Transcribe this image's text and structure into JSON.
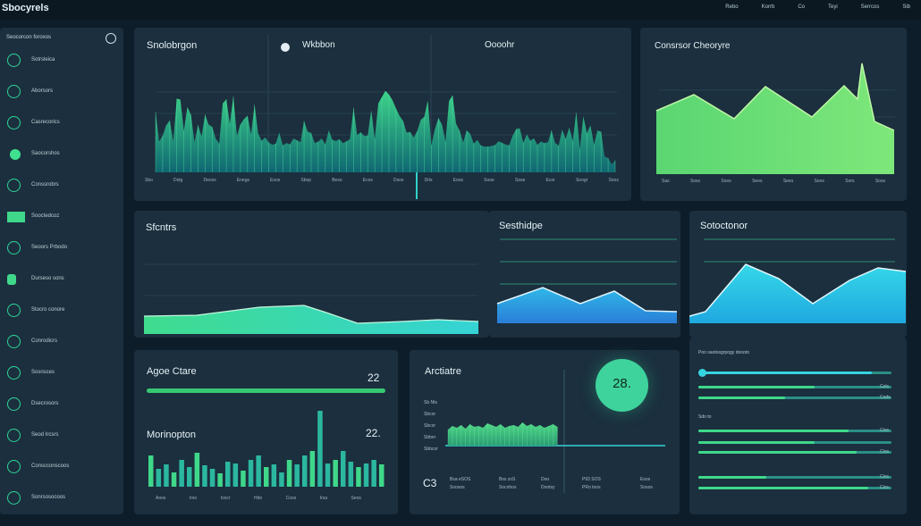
{
  "app": {
    "title": "Sbocyrels"
  },
  "topnav": [
    "Rebo",
    "Korrb",
    "Co",
    "Teyi",
    "Serrcos",
    "Sib"
  ],
  "sidebar": {
    "title": "Seocorcon foroxos",
    "items": [
      {
        "label": "Sotrsleica",
        "icon": "pulse-icon"
      },
      {
        "label": "Aborsors",
        "icon": "circle-icon"
      },
      {
        "label": "Casrecorics",
        "icon": "check-icon"
      },
      {
        "label": "Saocorshos",
        "icon": "dot-icon"
      },
      {
        "label": "Conssrobrs",
        "icon": "spiral-icon"
      },
      {
        "label": "Sooctedcoz",
        "icon": "square-icon"
      },
      {
        "label": "Seoors Prbodo",
        "icon": "chart-icon"
      },
      {
        "label": "Durseso sons",
        "icon": "toggle-icon"
      },
      {
        "label": "Stocro conore",
        "icon": "shield-icon"
      },
      {
        "label": "Conrodicrs",
        "icon": "ring-icon"
      },
      {
        "label": "Sosnsces",
        "icon": "target-icon"
      },
      {
        "label": "Dsecrosors",
        "icon": "heart-icon"
      },
      {
        "label": "Seod Ircsrs",
        "icon": "box-icon"
      },
      {
        "label": "Conscconscoos",
        "icon": "link-icon"
      },
      {
        "label": "Sonrsosocoos",
        "icon": "wave-icon"
      }
    ]
  },
  "panel_main": {
    "title": "Snolobrgon",
    "sub1": "Wkbbon",
    "sub2": "Oooohr",
    "ticks": [
      "Sbo",
      "Dstg",
      "Deces",
      "Enegs",
      "Esos",
      "Sbop",
      "Beso",
      "Ecos",
      "Dsos",
      "Drls",
      "Eoos",
      "Sooe",
      "Sose",
      "Ecor",
      "Soogr",
      "Soos"
    ]
  },
  "panel_right_top": {
    "title": "Consrsor Cheoryre",
    "ticks": [
      "Sas",
      "Soss",
      "Soos",
      "Sees",
      "Sees",
      "Seos",
      "Sors",
      "Soss"
    ]
  },
  "panel_mid": {
    "title": "Sfcntrs"
  },
  "panel_mid2": {
    "title": "Sesthidpe"
  },
  "panel_right_mid": {
    "title": "Sotoctonor"
  },
  "panel_stats": {
    "label1": "Agoe Ctare",
    "value1": "22",
    "label2": "Morinopton",
    "value2": "22.",
    "ticks": [
      "Aoos",
      "Irso",
      "Ioscr",
      "Hdo",
      "Coos",
      "Irsa",
      "Seos"
    ]
  },
  "panel_activity": {
    "title": "Arctiatre",
    "gauge_value": "28.",
    "left_labels": [
      "Sb Nts",
      "Sbcor",
      "Sbcor",
      "Sbber",
      "Sbbcor"
    ],
    "bottom_prefix": "C3",
    "bottom": [
      {
        "top": "Bsa eSOS",
        "bot": "Soosos"
      },
      {
        "top": "Bss zoS",
        "bot": "Socohos"
      },
      {
        "top": "Doo",
        "bot": "Dootsy"
      },
      {
        "top": "P93 SOS",
        "bot": "PRo toos"
      },
      {
        "top": "Esos",
        "bot": "Sosos"
      }
    ]
  },
  "panel_settings": {
    "header": "Poo saotosgrpogy doooto",
    "sub": "Sdo to",
    "sliders": [
      {
        "level": 0.9,
        "tail": ""
      },
      {
        "level": 0.6,
        "tail": "Cols"
      },
      {
        "level": 0.45,
        "tail": "Cods"
      },
      {
        "level": 0.78,
        "tail": "Clos"
      },
      {
        "level": 0.6,
        "tail": ""
      },
      {
        "level": 0.82,
        "tail": "Clos"
      },
      {
        "level": 0.35,
        "tail": "Clos"
      },
      {
        "level": 0.88,
        "tail": "Clos"
      }
    ]
  },
  "colors": {
    "accent_green": "#3fd88a",
    "accent_cyan": "#33d3e0",
    "panel": "#1b2f3e",
    "background": "#0e1d2a"
  }
}
